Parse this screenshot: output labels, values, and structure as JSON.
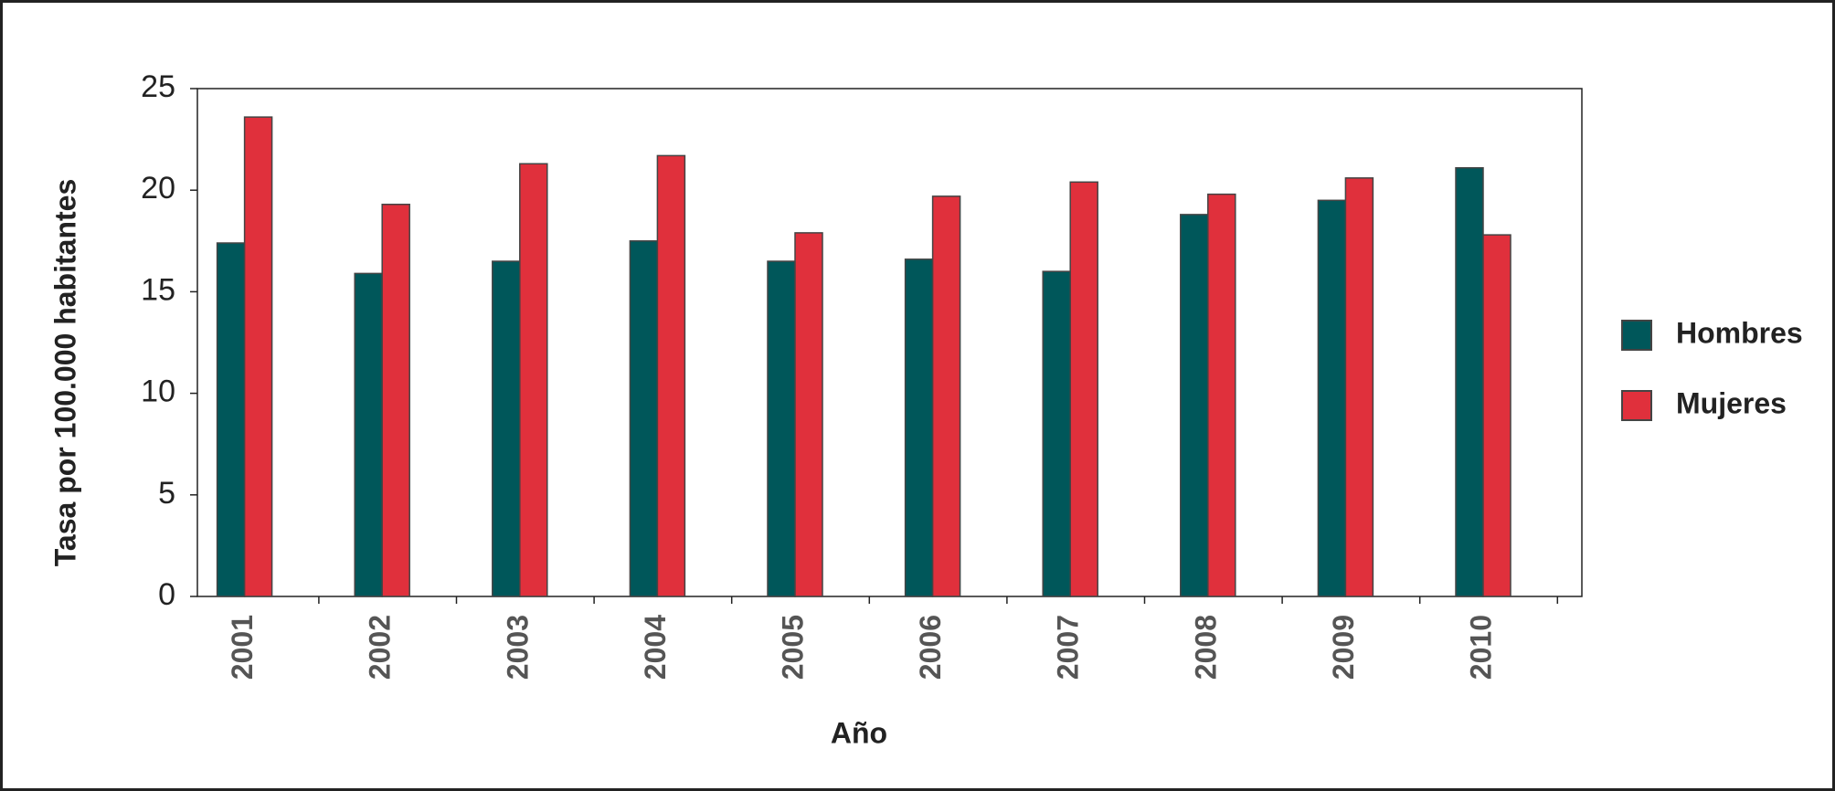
{
  "chart_data": {
    "type": "bar",
    "y_label": "Tasa por 100.000 habitantes",
    "x_label": "Año",
    "categories": [
      "2001",
      "2002",
      "2003",
      "2004",
      "2005",
      "2006",
      "2007",
      "2008",
      "2009",
      "2010"
    ],
    "series": [
      {
        "name": "Hombres",
        "color": "#00575a",
        "values": [
          17.4,
          15.9,
          16.5,
          17.5,
          16.5,
          16.6,
          16.0,
          18.8,
          19.5,
          21.1
        ]
      },
      {
        "name": "Mujeres",
        "color": "#e0303c",
        "values": [
          23.6,
          19.3,
          21.3,
          21.7,
          17.9,
          19.7,
          20.4,
          19.8,
          20.6,
          17.8
        ]
      }
    ],
    "ylim": [
      0,
      25
    ],
    "yticks": [
      0,
      5,
      10,
      15,
      20,
      25
    ],
    "legend": "right"
  }
}
